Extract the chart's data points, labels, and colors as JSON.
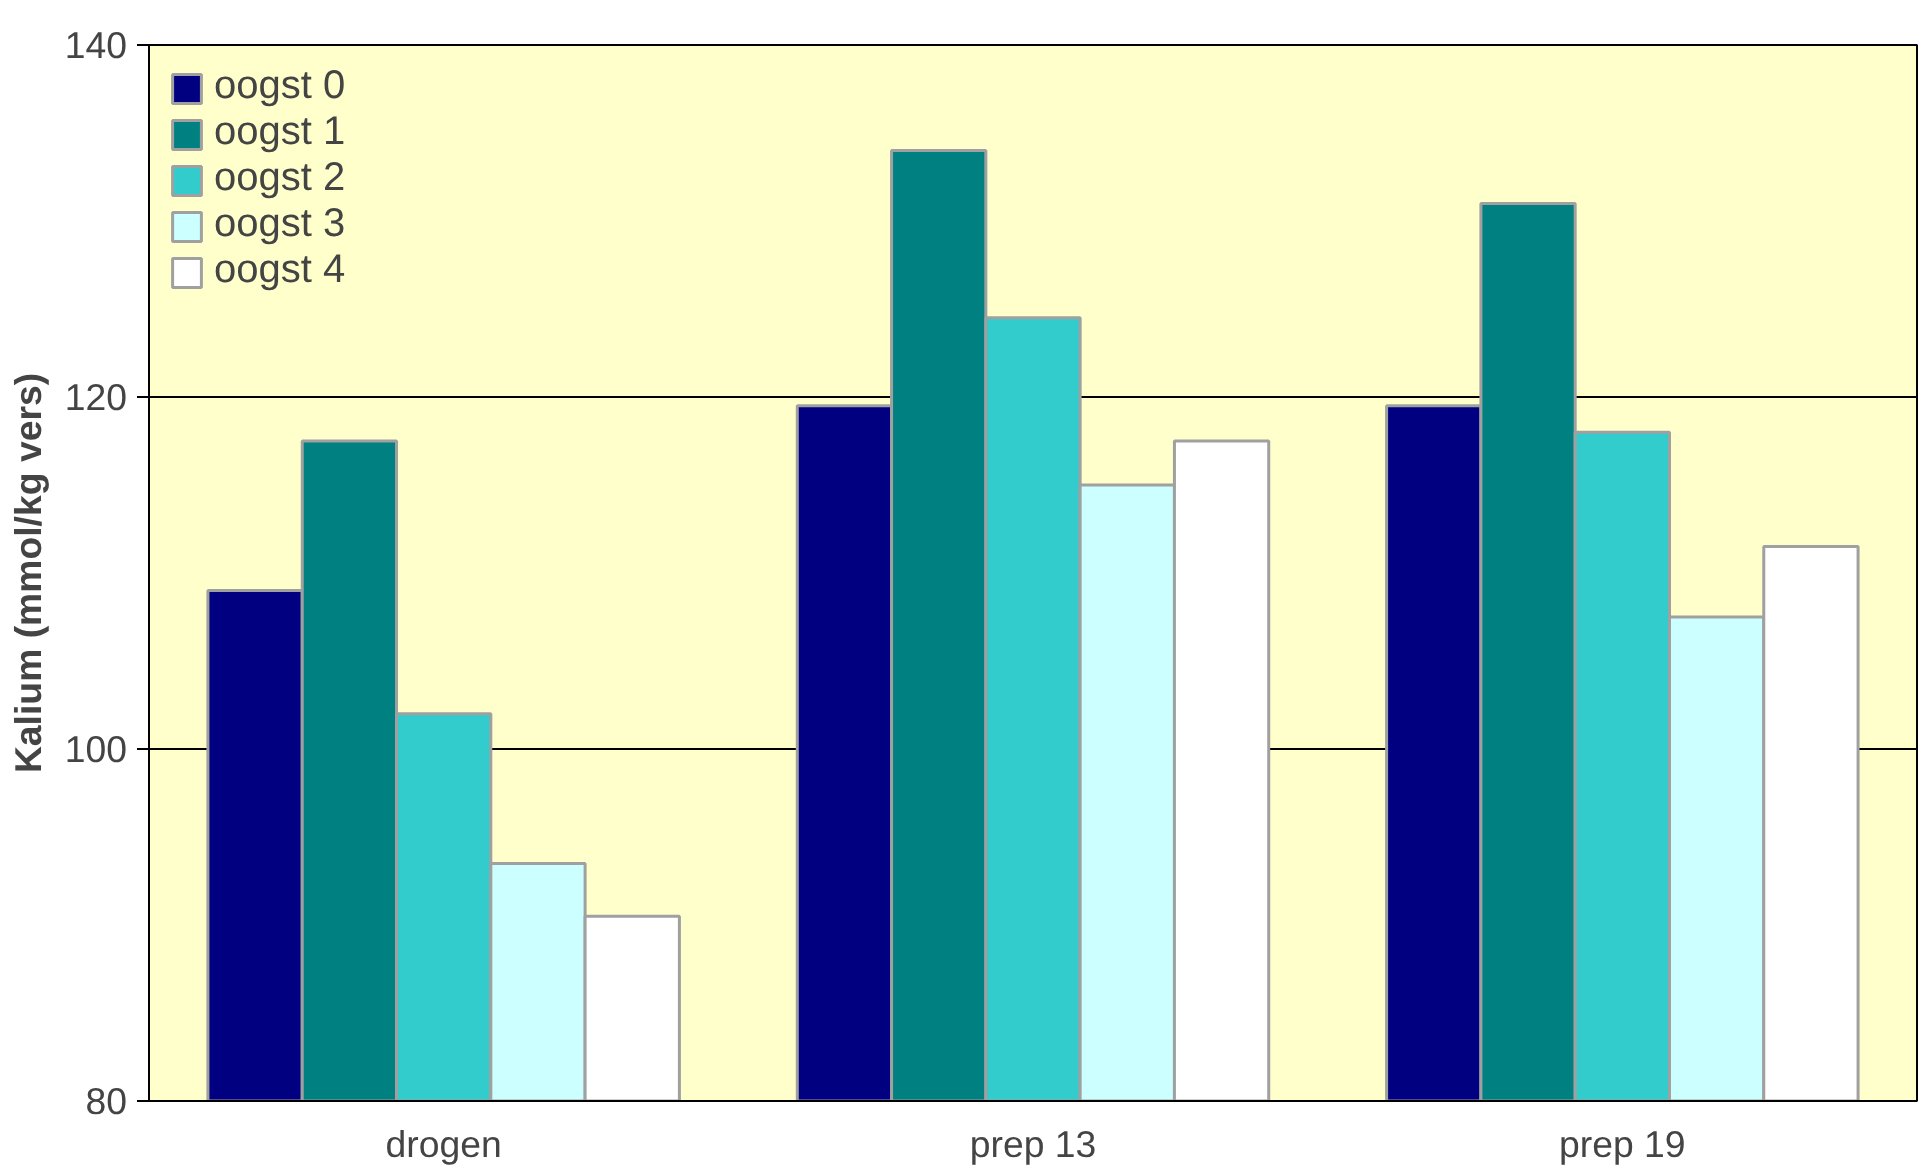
{
  "chart_data": {
    "type": "bar",
    "ylabel": "Kalium (mmol/kg vers)",
    "categories": [
      "drogen",
      "prep 13",
      "prep 19"
    ],
    "series": [
      {
        "name": "oogst 0",
        "color": "#000080",
        "values": [
          109,
          119.5,
          119.5
        ]
      },
      {
        "name": "oogst 1",
        "color": "#008080",
        "values": [
          117.5,
          134,
          131
        ]
      },
      {
        "name": "oogst 2",
        "color": "#33cccc",
        "values": [
          102,
          124.5,
          118
        ]
      },
      {
        "name": "oogst 3",
        "color": "#ccffff",
        "values": [
          93.5,
          115,
          107.5
        ]
      },
      {
        "name": "oogst 4",
        "color": "#ffffff",
        "values": [
          90.5,
          117.5,
          111.5
        ]
      }
    ],
    "ylim": [
      80,
      140
    ],
    "yticks": [
      80,
      100,
      120,
      140
    ],
    "grid": "y",
    "legend": "top left"
  }
}
